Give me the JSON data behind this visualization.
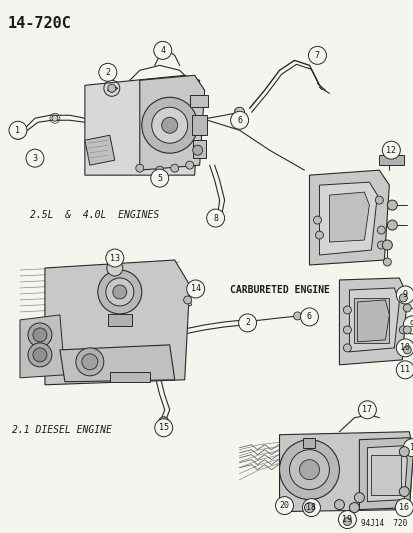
{
  "title": "14-720C",
  "bg_color": "#f5f5f0",
  "text_color": "#1a1a1a",
  "label_25L_40L": "2.5L  &  4.0L  ENGINES",
  "label_21_diesel": "2.1 DIESEL ENGINE",
  "label_carb": "CARBURETED ENGINE",
  "footer": "94J14  720",
  "fig_width": 4.14,
  "fig_height": 5.33,
  "dpi": 100
}
